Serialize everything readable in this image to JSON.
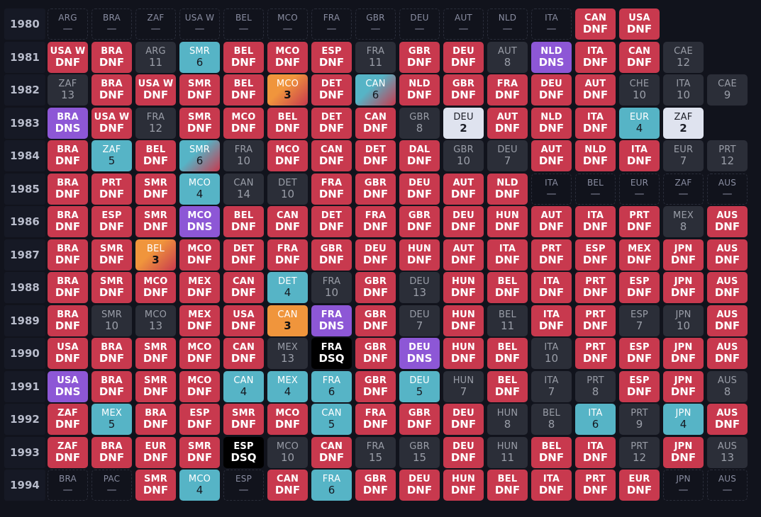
{
  "years": [
    {
      "year": "1980",
      "cells": [
        [
          "ARG",
          "—",
          "none"
        ],
        [
          "BRA",
          "—",
          "none"
        ],
        [
          "ZAF",
          "—",
          "none"
        ],
        [
          "USA W",
          "—",
          "none"
        ],
        [
          "BEL",
          "—",
          "none"
        ],
        [
          "MCO",
          "—",
          "none"
        ],
        [
          "FRA",
          "—",
          "none"
        ],
        [
          "GBR",
          "—",
          "none"
        ],
        [
          "DEU",
          "—",
          "none"
        ],
        [
          "AUT",
          "—",
          "none"
        ],
        [
          "NLD",
          "—",
          "none"
        ],
        [
          "ITA",
          "—",
          "none"
        ],
        [
          "CAN",
          "DNF",
          "dnf"
        ],
        [
          "USA",
          "DNF",
          "dnf"
        ]
      ]
    },
    {
      "year": "1981",
      "cells": [
        [
          "USA W",
          "DNF",
          "dnf"
        ],
        [
          "BRA",
          "DNF",
          "dnf"
        ],
        [
          "ARG",
          "11",
          "fin"
        ],
        [
          "SMR",
          "6",
          "pts"
        ],
        [
          "BEL",
          "DNF",
          "dnf"
        ],
        [
          "MCO",
          "DNF",
          "dnf"
        ],
        [
          "ESP",
          "DNF",
          "dnf"
        ],
        [
          "FRA",
          "11",
          "fin"
        ],
        [
          "GBR",
          "DNF",
          "dnf"
        ],
        [
          "DEU",
          "DNF",
          "dnf"
        ],
        [
          "AUT",
          "8",
          "fin"
        ],
        [
          "NLD",
          "DNS",
          "dns"
        ],
        [
          "ITA",
          "DNF",
          "dnf"
        ],
        [
          "CAN",
          "DNF",
          "dnf"
        ],
        [
          "CAE",
          "12",
          "fin"
        ]
      ]
    },
    {
      "year": "1982",
      "cells": [
        [
          "ZAF",
          "13",
          "fin"
        ],
        [
          "BRA",
          "DNF",
          "dnf"
        ],
        [
          "USA W",
          "DNF",
          "dnf"
        ],
        [
          "SMR",
          "DNF",
          "dnf"
        ],
        [
          "BEL",
          "DNF",
          "dnf"
        ],
        [
          "MCO",
          "3",
          "grad-pod3"
        ],
        [
          "DET",
          "DNF",
          "dnf"
        ],
        [
          "CAN",
          "6",
          "grad-pts"
        ],
        [
          "NLD",
          "DNF",
          "dnf"
        ],
        [
          "GBR",
          "DNF",
          "dnf"
        ],
        [
          "FRA",
          "DNF",
          "dnf"
        ],
        [
          "DEU",
          "DNF",
          "dnf"
        ],
        [
          "AUT",
          "DNF",
          "dnf"
        ],
        [
          "CHE",
          "10",
          "fin"
        ],
        [
          "ITA",
          "10",
          "fin"
        ],
        [
          "CAE",
          "9",
          "fin"
        ]
      ]
    },
    {
      "year": "1983",
      "cells": [
        [
          "BRA",
          "DNS",
          "dns"
        ],
        [
          "USA W",
          "DNF",
          "dnf"
        ],
        [
          "FRA",
          "12",
          "fin"
        ],
        [
          "SMR",
          "DNF",
          "dnf"
        ],
        [
          "MCO",
          "DNF",
          "dnf"
        ],
        [
          "BEL",
          "DNF",
          "dnf"
        ],
        [
          "DET",
          "DNF",
          "dnf"
        ],
        [
          "CAN",
          "DNF",
          "dnf"
        ],
        [
          "GBR",
          "8",
          "fin"
        ],
        [
          "DEU",
          "2",
          "pod2"
        ],
        [
          "AUT",
          "DNF",
          "dnf"
        ],
        [
          "NLD",
          "DNF",
          "dnf"
        ],
        [
          "ITA",
          "DNF",
          "dnf"
        ],
        [
          "EUR",
          "4",
          "pts"
        ],
        [
          "ZAF",
          "2",
          "pod2"
        ]
      ]
    },
    {
      "year": "1984",
      "cells": [
        [
          "BRA",
          "DNF",
          "dnf"
        ],
        [
          "ZAF",
          "5",
          "pts"
        ],
        [
          "BEL",
          "DNF",
          "dnf"
        ],
        [
          "SMR",
          "6",
          "grad-pts"
        ],
        [
          "FRA",
          "10",
          "fin"
        ],
        [
          "MCO",
          "DNF",
          "dnf"
        ],
        [
          "CAN",
          "DNF",
          "dnf"
        ],
        [
          "DET",
          "DNF",
          "dnf"
        ],
        [
          "DAL",
          "DNF",
          "dnf"
        ],
        [
          "GBR",
          "10",
          "fin"
        ],
        [
          "DEU",
          "7",
          "fin"
        ],
        [
          "AUT",
          "DNF",
          "dnf"
        ],
        [
          "NLD",
          "DNF",
          "dnf"
        ],
        [
          "ITA",
          "DNF",
          "dnf"
        ],
        [
          "EUR",
          "7",
          "fin"
        ],
        [
          "PRT",
          "12",
          "fin"
        ]
      ]
    },
    {
      "year": "1985",
      "cells": [
        [
          "BRA",
          "DNF",
          "dnf"
        ],
        [
          "PRT",
          "DNF",
          "dnf"
        ],
        [
          "SMR",
          "DNF",
          "dnf"
        ],
        [
          "MCO",
          "4",
          "pts"
        ],
        [
          "CAN",
          "14",
          "fin"
        ],
        [
          "DET",
          "10",
          "fin"
        ],
        [
          "FRA",
          "DNF",
          "dnf"
        ],
        [
          "GBR",
          "DNF",
          "dnf"
        ],
        [
          "DEU",
          "DNF",
          "dnf"
        ],
        [
          "AUT",
          "DNF",
          "dnf"
        ],
        [
          "NLD",
          "DNF",
          "dnf"
        ],
        [
          "ITA",
          "—",
          "none"
        ],
        [
          "BEL",
          "—",
          "none"
        ],
        [
          "EUR",
          "—",
          "none"
        ],
        [
          "ZAF",
          "—",
          "none"
        ],
        [
          "AUS",
          "—",
          "none"
        ]
      ]
    },
    {
      "year": "1986",
      "cells": [
        [
          "BRA",
          "DNF",
          "dnf"
        ],
        [
          "ESP",
          "DNF",
          "dnf"
        ],
        [
          "SMR",
          "DNF",
          "dnf"
        ],
        [
          "MCO",
          "DNS",
          "dns"
        ],
        [
          "BEL",
          "DNF",
          "dnf"
        ],
        [
          "CAN",
          "DNF",
          "dnf"
        ],
        [
          "DET",
          "DNF",
          "dnf"
        ],
        [
          "FRA",
          "DNF",
          "dnf"
        ],
        [
          "GBR",
          "DNF",
          "dnf"
        ],
        [
          "DEU",
          "DNF",
          "dnf"
        ],
        [
          "HUN",
          "DNF",
          "dnf"
        ],
        [
          "AUT",
          "DNF",
          "dnf"
        ],
        [
          "ITA",
          "DNF",
          "dnf"
        ],
        [
          "PRT",
          "DNF",
          "dnf"
        ],
        [
          "MEX",
          "8",
          "fin"
        ],
        [
          "AUS",
          "DNF",
          "dnf"
        ]
      ]
    },
    {
      "year": "1987",
      "cells": [
        [
          "BRA",
          "DNF",
          "dnf"
        ],
        [
          "SMR",
          "DNF",
          "dnf"
        ],
        [
          "BEL",
          "3",
          "grad-pod3"
        ],
        [
          "MCO",
          "DNF",
          "dnf"
        ],
        [
          "DET",
          "DNF",
          "dnf"
        ],
        [
          "FRA",
          "DNF",
          "dnf"
        ],
        [
          "GBR",
          "DNF",
          "dnf"
        ],
        [
          "DEU",
          "DNF",
          "dnf"
        ],
        [
          "HUN",
          "DNF",
          "dnf"
        ],
        [
          "AUT",
          "DNF",
          "dnf"
        ],
        [
          "ITA",
          "DNF",
          "dnf"
        ],
        [
          "PRT",
          "DNF",
          "dnf"
        ],
        [
          "ESP",
          "DNF",
          "dnf"
        ],
        [
          "MEX",
          "DNF",
          "dnf"
        ],
        [
          "JPN",
          "DNF",
          "dnf"
        ],
        [
          "AUS",
          "DNF",
          "dnf"
        ]
      ]
    },
    {
      "year": "1988",
      "cells": [
        [
          "BRA",
          "DNF",
          "dnf"
        ],
        [
          "SMR",
          "DNF",
          "dnf"
        ],
        [
          "MCO",
          "DNF",
          "dnf"
        ],
        [
          "MEX",
          "DNF",
          "dnf"
        ],
        [
          "CAN",
          "DNF",
          "dnf"
        ],
        [
          "DET",
          "4",
          "pts"
        ],
        [
          "FRA",
          "10",
          "fin"
        ],
        [
          "GBR",
          "DNF",
          "dnf"
        ],
        [
          "DEU",
          "13",
          "fin"
        ],
        [
          "HUN",
          "DNF",
          "dnf"
        ],
        [
          "BEL",
          "DNF",
          "dnf"
        ],
        [
          "ITA",
          "DNF",
          "dnf"
        ],
        [
          "PRT",
          "DNF",
          "dnf"
        ],
        [
          "ESP",
          "DNF",
          "dnf"
        ],
        [
          "JPN",
          "DNF",
          "dnf"
        ],
        [
          "AUS",
          "DNF",
          "dnf"
        ]
      ]
    },
    {
      "year": "1989",
      "cells": [
        [
          "BRA",
          "DNF",
          "dnf"
        ],
        [
          "SMR",
          "10",
          "fin"
        ],
        [
          "MCO",
          "13",
          "fin"
        ],
        [
          "MEX",
          "DNF",
          "dnf"
        ],
        [
          "USA",
          "DNF",
          "dnf"
        ],
        [
          "CAN",
          "3",
          "pod3"
        ],
        [
          "FRA",
          "DNS",
          "dns"
        ],
        [
          "GBR",
          "DNF",
          "dnf"
        ],
        [
          "DEU",
          "7",
          "fin"
        ],
        [
          "HUN",
          "DNF",
          "dnf"
        ],
        [
          "BEL",
          "11",
          "fin"
        ],
        [
          "ITA",
          "DNF",
          "dnf"
        ],
        [
          "PRT",
          "DNF",
          "dnf"
        ],
        [
          "ESP",
          "7",
          "fin"
        ],
        [
          "JPN",
          "10",
          "fin"
        ],
        [
          "AUS",
          "DNF",
          "dnf"
        ]
      ]
    },
    {
      "year": "1990",
      "cells": [
        [
          "USA",
          "DNF",
          "dnf"
        ],
        [
          "BRA",
          "DNF",
          "dnf"
        ],
        [
          "SMR",
          "DNF",
          "dnf"
        ],
        [
          "MCO",
          "DNF",
          "dnf"
        ],
        [
          "CAN",
          "DNF",
          "dnf"
        ],
        [
          "MEX",
          "13",
          "fin"
        ],
        [
          "FRA",
          "DSQ",
          "dsq"
        ],
        [
          "GBR",
          "DNF",
          "dnf"
        ],
        [
          "DEU",
          "DNS",
          "dns"
        ],
        [
          "HUN",
          "DNF",
          "dnf"
        ],
        [
          "BEL",
          "DNF",
          "dnf"
        ],
        [
          "ITA",
          "10",
          "fin"
        ],
        [
          "PRT",
          "DNF",
          "dnf"
        ],
        [
          "ESP",
          "DNF",
          "dnf"
        ],
        [
          "JPN",
          "DNF",
          "dnf"
        ],
        [
          "AUS",
          "DNF",
          "dnf"
        ]
      ]
    },
    {
      "year": "1991",
      "cells": [
        [
          "USA",
          "DNS",
          "dns"
        ],
        [
          "BRA",
          "DNF",
          "dnf"
        ],
        [
          "SMR",
          "DNF",
          "dnf"
        ],
        [
          "MCO",
          "DNF",
          "dnf"
        ],
        [
          "CAN",
          "4",
          "pts"
        ],
        [
          "MEX",
          "4",
          "pts"
        ],
        [
          "FRA",
          "6",
          "pts"
        ],
        [
          "GBR",
          "DNF",
          "dnf"
        ],
        [
          "DEU",
          "5",
          "pts"
        ],
        [
          "HUN",
          "7",
          "fin"
        ],
        [
          "BEL",
          "DNF",
          "dnf"
        ],
        [
          "ITA",
          "7",
          "fin"
        ],
        [
          "PRT",
          "8",
          "fin"
        ],
        [
          "ESP",
          "DNF",
          "dnf"
        ],
        [
          "JPN",
          "DNF",
          "dnf"
        ],
        [
          "AUS",
          "8",
          "fin"
        ]
      ]
    },
    {
      "year": "1992",
      "cells": [
        [
          "ZAF",
          "DNF",
          "dnf"
        ],
        [
          "MEX",
          "5",
          "pts"
        ],
        [
          "BRA",
          "DNF",
          "dnf"
        ],
        [
          "ESP",
          "DNF",
          "dnf"
        ],
        [
          "SMR",
          "DNF",
          "dnf"
        ],
        [
          "MCO",
          "DNF",
          "dnf"
        ],
        [
          "CAN",
          "5",
          "pts"
        ],
        [
          "FRA",
          "DNF",
          "dnf"
        ],
        [
          "GBR",
          "DNF",
          "dnf"
        ],
        [
          "DEU",
          "DNF",
          "dnf"
        ],
        [
          "HUN",
          "8",
          "fin"
        ],
        [
          "BEL",
          "8",
          "fin"
        ],
        [
          "ITA",
          "6",
          "pts"
        ],
        [
          "PRT",
          "9",
          "fin"
        ],
        [
          "JPN",
          "4",
          "pts"
        ],
        [
          "AUS",
          "DNF",
          "dnf"
        ]
      ]
    },
    {
      "year": "1993",
      "cells": [
        [
          "ZAF",
          "DNF",
          "dnf"
        ],
        [
          "BRA",
          "DNF",
          "dnf"
        ],
        [
          "EUR",
          "DNF",
          "dnf"
        ],
        [
          "SMR",
          "DNF",
          "dnf"
        ],
        [
          "ESP",
          "DSQ",
          "dsq"
        ],
        [
          "MCO",
          "10",
          "fin"
        ],
        [
          "CAN",
          "DNF",
          "dnf"
        ],
        [
          "FRA",
          "15",
          "fin"
        ],
        [
          "GBR",
          "15",
          "fin"
        ],
        [
          "DEU",
          "DNF",
          "dnf"
        ],
        [
          "HUN",
          "11",
          "fin"
        ],
        [
          "BEL",
          "DNF",
          "dnf"
        ],
        [
          "ITA",
          "DNF",
          "dnf"
        ],
        [
          "PRT",
          "12",
          "fin"
        ],
        [
          "JPN",
          "DNF",
          "dnf"
        ],
        [
          "AUS",
          "13",
          "fin"
        ]
      ]
    },
    {
      "year": "1994",
      "cells": [
        [
          "BRA",
          "—",
          "none"
        ],
        [
          "PAC",
          "—",
          "none"
        ],
        [
          "SMR",
          "DNF",
          "dnf"
        ],
        [
          "MCO",
          "4",
          "pts"
        ],
        [
          "ESP",
          "—",
          "none"
        ],
        [
          "CAN",
          "DNF",
          "dnf"
        ],
        [
          "FRA",
          "6",
          "pts"
        ],
        [
          "GBR",
          "DNF",
          "dnf"
        ],
        [
          "DEU",
          "DNF",
          "dnf"
        ],
        [
          "HUN",
          "DNF",
          "dnf"
        ],
        [
          "BEL",
          "DNF",
          "dnf"
        ],
        [
          "ITA",
          "DNF",
          "dnf"
        ],
        [
          "PRT",
          "DNF",
          "dnf"
        ],
        [
          "EUR",
          "DNF",
          "dnf"
        ],
        [
          "JPN",
          "—",
          "none"
        ],
        [
          "AUS",
          "—",
          "none"
        ]
      ]
    }
  ]
}
